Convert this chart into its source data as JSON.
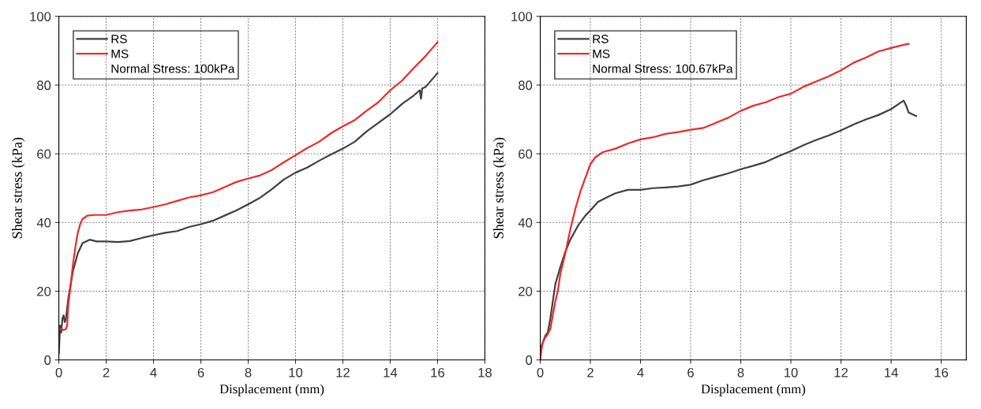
{
  "chart_data": [
    {
      "type": "line",
      "xlabel": "Displacement (mm)",
      "ylabel": "Shear stress (kPa)",
      "xlim": [
        0,
        18
      ],
      "xticks": [
        0,
        2,
        4,
        6,
        8,
        10,
        12,
        14,
        16,
        18
      ],
      "ylim": [
        0,
        100
      ],
      "yticks": [
        0,
        20,
        40,
        60,
        80,
        100
      ],
      "grid": true,
      "legend": "top left",
      "annotations": [
        "Normal Stress: 100kPa"
      ],
      "series": [
        {
          "name": "RS",
          "color": "#404040",
          "x": [
            0,
            0.05,
            0.1,
            0.15,
            0.2,
            0.25,
            0.3,
            0.4,
            0.5,
            0.6,
            0.8,
            1.0,
            1.3,
            1.6,
            2,
            2.5,
            3,
            3.5,
            4,
            4.5,
            5,
            5.5,
            6,
            6.5,
            7,
            7.5,
            8,
            8.5,
            9,
            9.5,
            10,
            10.5,
            11,
            11.5,
            12,
            12.5,
            13,
            13.5,
            14,
            14.5,
            15,
            15.25,
            15.3,
            15.35,
            15.5,
            16
          ],
          "values": [
            2,
            10,
            8,
            12,
            13,
            11,
            12,
            18,
            22,
            26,
            31,
            34,
            35,
            34.5,
            34.5,
            34.3,
            34.6,
            35.5,
            36.3,
            37,
            37.5,
            38.7,
            39.5,
            40.5,
            42,
            43.5,
            45.3,
            47.2,
            49.7,
            52.5,
            54.5,
            56,
            58,
            59.8,
            61.5,
            63.5,
            66.5,
            69,
            71.5,
            74.5,
            77,
            78.5,
            76,
            79,
            79.5,
            83.5
          ]
        },
        {
          "name": "MS",
          "color": "#ee2a2a",
          "x": [
            0,
            0.1,
            0.2,
            0.3,
            0.35,
            0.4,
            0.5,
            0.6,
            0.7,
            0.8,
            0.9,
            1.0,
            1.2,
            1.5,
            2,
            2.5,
            3,
            3.5,
            4,
            4.5,
            5,
            5.5,
            6,
            6.5,
            7,
            7.5,
            8,
            8.5,
            9,
            9.5,
            10,
            10.5,
            11,
            11.5,
            12,
            12.5,
            13,
            13.5,
            14,
            14.5,
            15,
            15.5,
            16
          ],
          "values": [
            9,
            9,
            8.7,
            9,
            10,
            16,
            22,
            28,
            33,
            37,
            39.5,
            41,
            42,
            42.2,
            42.2,
            43,
            43.5,
            43.8,
            44.5,
            45.3,
            46.3,
            47.3,
            47.9,
            48.8,
            50.3,
            51.8,
            52.8,
            53.7,
            55.3,
            57.5,
            59.6,
            61.7,
            63.5,
            66,
            68,
            69.8,
            72.5,
            75,
            78.5,
            81.3,
            85,
            88.5,
            92.5
          ]
        }
      ]
    },
    {
      "type": "line",
      "xlabel": "Displacement (mm)",
      "ylabel": "Shear stress (kPa)",
      "xlim": [
        0,
        17
      ],
      "xticks": [
        0,
        2,
        4,
        6,
        8,
        10,
        12,
        14,
        16
      ],
      "ylim": [
        0,
        100
      ],
      "yticks": [
        0,
        20,
        40,
        60,
        80,
        100
      ],
      "grid": true,
      "legend": "top left",
      "annotations": [
        "Normal Stress: 100.67kPa"
      ],
      "series": [
        {
          "name": "RS",
          "color": "#404040",
          "x": [
            0,
            0.1,
            0.2,
            0.3,
            0.4,
            0.5,
            0.6,
            0.8,
            1.0,
            1.2,
            1.5,
            1.8,
            2,
            2.3,
            2.7,
            3,
            3.5,
            4,
            4.5,
            5,
            5.5,
            6,
            6.5,
            7,
            7.5,
            8,
            8.5,
            9,
            9.5,
            10,
            10.5,
            11,
            11.5,
            12,
            12.5,
            13,
            13.5,
            14,
            14.5,
            14.6,
            14.7,
            15
          ],
          "values": [
            3,
            5,
            7,
            8,
            12,
            17,
            22,
            27,
            31.5,
            35,
            39,
            42,
            43.5,
            46,
            47.5,
            48.5,
            49.5,
            49.5,
            50,
            50.2,
            50.5,
            51,
            52.3,
            53.3,
            54.3,
            55.5,
            56.5,
            57.6,
            59.3,
            60.8,
            62.5,
            64,
            65.3,
            66.8,
            68.5,
            70,
            71.3,
            73,
            75.5,
            74,
            72,
            71
          ]
        },
        {
          "name": "MS",
          "color": "#ee2a2a",
          "x": [
            0,
            0.05,
            0.1,
            0.2,
            0.3,
            0.4,
            0.5,
            0.6,
            0.7,
            0.8,
            1.0,
            1.2,
            1.4,
            1.6,
            1.8,
            2,
            2.2,
            2.5,
            3,
            3.5,
            4,
            4.5,
            5,
            5.5,
            6,
            6.5,
            7,
            7.5,
            8,
            8.5,
            9,
            9.5,
            10,
            10.5,
            11,
            11.5,
            12,
            12.5,
            13,
            13.5,
            14,
            14.5,
            14.7
          ],
          "values": [
            0,
            3,
            5,
            6.5,
            7.5,
            9,
            13,
            17,
            20,
            25,
            31,
            38,
            44,
            49,
            53,
            57,
            59,
            60.5,
            61.5,
            63,
            64.2,
            64.8,
            65.8,
            66.3,
            67,
            67.5,
            69,
            70.5,
            72.5,
            74,
            75,
            76.5,
            77.5,
            79.5,
            81,
            82.5,
            84.3,
            86.5,
            88,
            89.8,
            90.8,
            91.7,
            92
          ]
        }
      ]
    }
  ]
}
